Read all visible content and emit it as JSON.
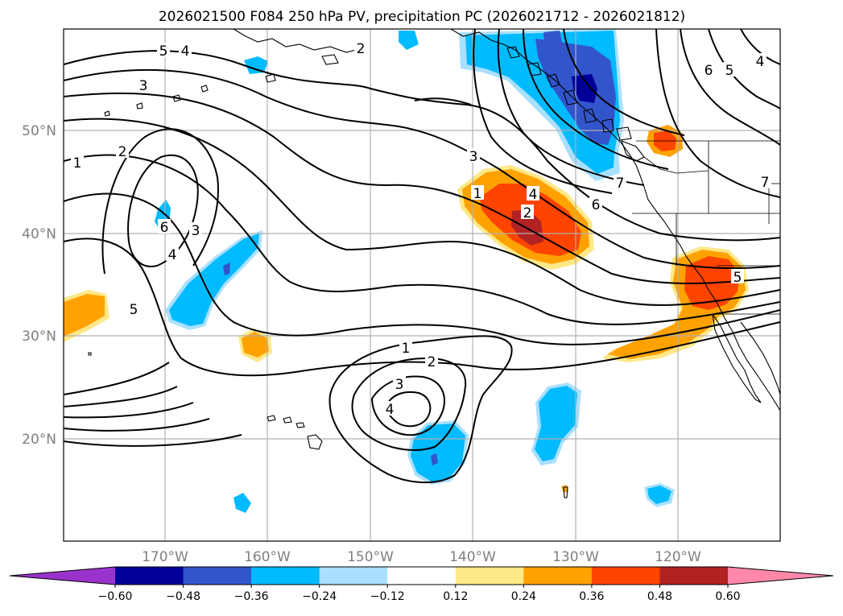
{
  "title": "2026021500 F084 250 hPa PV, precipitation PC (2026021712 - 2026021812)",
  "lat_ticks": [
    "50°N",
    "40°N",
    "30°N",
    "20°N"
  ],
  "lon_ticks": [
    "170°W",
    "160°W",
    "150°W",
    "140°W",
    "130°W",
    "120°W"
  ],
  "colorbar": {
    "levels": [
      "−0.60",
      "−0.48",
      "−0.36",
      "−0.24",
      "−0.12",
      "0.12",
      "0.24",
      "0.36",
      "0.48",
      "0.60"
    ],
    "colors": [
      "#9933cc",
      "#000099",
      "#3355cc",
      "#00bbff",
      "#aae0ff",
      "#ffffff",
      "#ffe888",
      "#ffa200",
      "#ff4400",
      "#b22222",
      "#ff88aa"
    ]
  },
  "contour_labels": [
    "1",
    "2",
    "3",
    "4",
    "5",
    "6",
    "7"
  ],
  "colors": {
    "neg_dark": "#000099",
    "neg_mid": "#3355cc",
    "neg_light": "#00bbff",
    "neg_pale": "#aae0ff",
    "pos_pale": "#ffe888",
    "pos_mid": "#ffa200",
    "pos_strong": "#ff4400",
    "pos_dark": "#b22222"
  }
}
